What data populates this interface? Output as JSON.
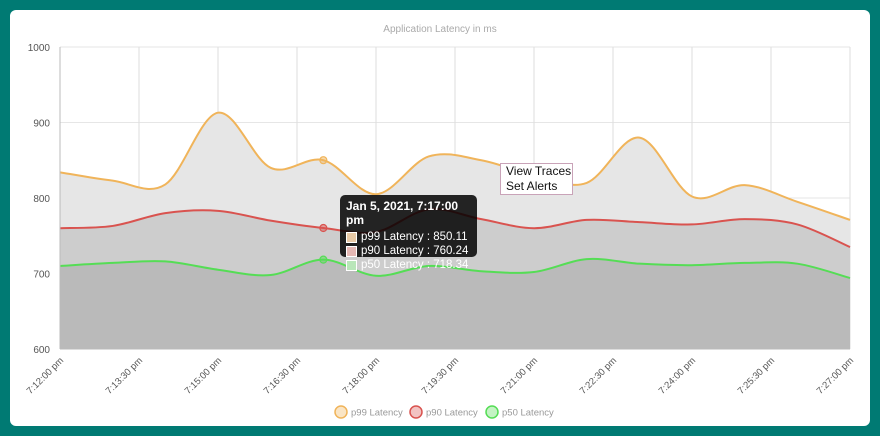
{
  "chart_data": {
    "type": "area",
    "title": "Application Latency in ms",
    "ylim": [
      600,
      1000
    ],
    "yticks": [
      "1000",
      "900",
      "800",
      "700",
      "600"
    ],
    "xticks": [
      "7:12:00 pm",
      "7:13:30 pm",
      "7:15:00 pm",
      "7:16:30 pm",
      "7:18:00 pm",
      "7:19:30 pm",
      "7:21:00 pm",
      "7:22:30 pm",
      "7:24:00 pm",
      "7:25:30 pm",
      "7:27:00 pm"
    ],
    "x": [
      "7:12:00 pm",
      "7:13:00 pm",
      "7:14:00 pm",
      "7:15:00 pm",
      "7:16:00 pm",
      "7:17:00 pm",
      "7:18:00 pm",
      "7:19:00 pm",
      "7:20:00 pm",
      "7:21:00 pm",
      "7:22:00 pm",
      "7:23:00 pm",
      "7:24:00 pm",
      "7:25:00 pm",
      "7:26:00 pm",
      "7:27:00 pm"
    ],
    "series": [
      {
        "name": "p99 Latency",
        "color": "#f0b45a",
        "fill": "#e6e6e6",
        "values": [
          834,
          823,
          818,
          913,
          840,
          850.11,
          805,
          855,
          850,
          830,
          820,
          880,
          802,
          817,
          795,
          771
        ]
      },
      {
        "name": "p90 Latency",
        "color": "#d9534f",
        "fill": "#cdcdcd",
        "values": [
          760,
          763,
          780,
          783,
          770,
          760.24,
          755,
          785,
          772,
          760,
          771,
          768,
          765,
          772,
          765,
          735
        ]
      },
      {
        "name": "p50 Latency",
        "color": "#55dd55",
        "fill": "#bababa",
        "values": [
          710,
          714,
          716,
          705,
          698,
          718.34,
          697,
          710,
          703,
          702,
          719,
          713,
          711,
          714,
          713,
          694
        ]
      }
    ],
    "grid": true,
    "legend": "bottom"
  },
  "tooltip": {
    "title": "Jan 5, 2021, 7:17:00 pm",
    "rows": [
      "p99 Latency : 850.11",
      "p90 Latency : 760.24",
      "p50 Latency : 718.34"
    ]
  },
  "context_menu": {
    "items": [
      "View Traces",
      "Set Alerts"
    ]
  }
}
